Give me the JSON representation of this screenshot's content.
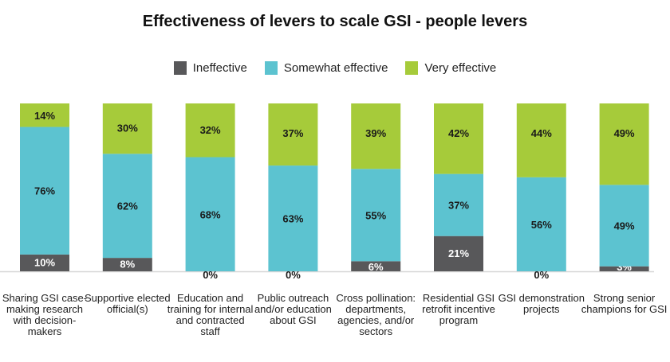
{
  "chart_data": {
    "type": "bar",
    "stacked": true,
    "title": "Effectiveness of levers to scale GSI - people levers",
    "xlabel": "",
    "ylabel": "",
    "ylim": [
      0,
      100
    ],
    "grid": false,
    "legend_position": "top-center",
    "categories": [
      "Sharing GSI case-making research with decision-makers",
      "Supportive elected official(s)",
      "Education and training for internal and contracted staff",
      "Public outreach and/or education about GSI",
      "Cross pollination: departments, agencies, and/or sectors",
      "Residential GSI retrofit incentive program",
      "GSI demonstration projects",
      "Strong senior champions for GSI"
    ],
    "series": [
      {
        "name": "Ineffective",
        "color": "#58585a",
        "values": [
          10,
          8,
          0,
          0,
          6,
          21,
          0,
          3
        ]
      },
      {
        "name": "Somewhat effective",
        "color": "#5cc3d0",
        "values": [
          76,
          62,
          68,
          63,
          55,
          37,
          56,
          49
        ]
      },
      {
        "name": "Very effective",
        "color": "#a6cb3a",
        "values": [
          14,
          30,
          32,
          37,
          39,
          42,
          44,
          49
        ]
      }
    ]
  }
}
